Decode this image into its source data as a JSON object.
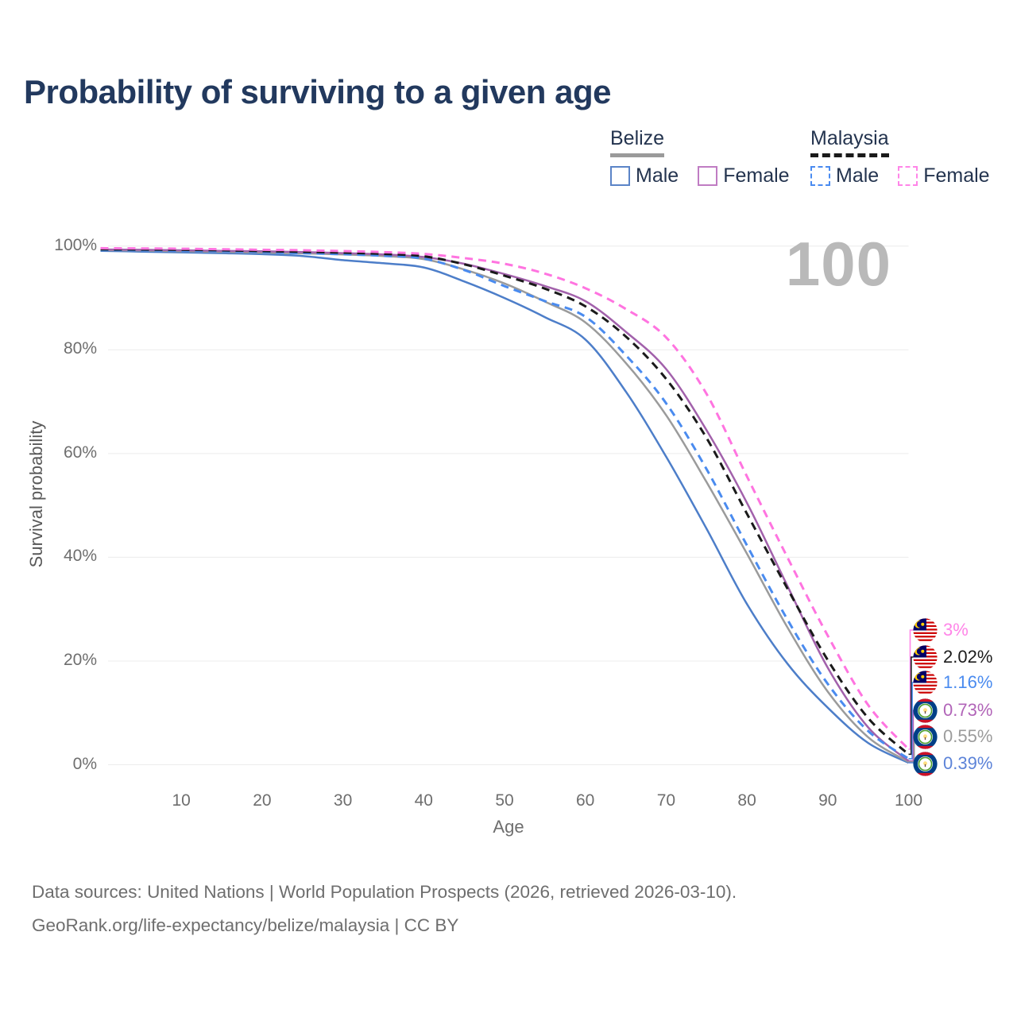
{
  "title": "Probability of surviving to a given age",
  "watermark_age": "100",
  "legend": {
    "groups": [
      {
        "label": "Belize",
        "line_style": "solid",
        "line_color": "#9a9a9a",
        "items": [
          {
            "label": "Male",
            "color": "#5b84c7",
            "dashed": false
          },
          {
            "label": "Female",
            "color": "#c07cc3",
            "dashed": false
          }
        ]
      },
      {
        "label": "Malaysia",
        "line_style": "dashed",
        "line_color": "#1a1a1a",
        "items": [
          {
            "label": "Male",
            "color": "#4a8bf0",
            "dashed": true
          },
          {
            "label": "Female",
            "color": "#ff85e8",
            "dashed": true
          }
        ]
      }
    ]
  },
  "axes": {
    "y_label": "Survival probability",
    "x_label": "Age",
    "y_ticks": [
      {
        "label": "100%",
        "value": 100
      },
      {
        "label": "80%",
        "value": 80
      },
      {
        "label": "60%",
        "value": 60
      },
      {
        "label": "40%",
        "value": 40
      },
      {
        "label": "20%",
        "value": 20
      },
      {
        "label": "0%",
        "value": 0
      }
    ],
    "x_ticks": [
      {
        "label": "10",
        "value": 10
      },
      {
        "label": "20",
        "value": 20
      },
      {
        "label": "30",
        "value": 30
      },
      {
        "label": "40",
        "value": 40
      },
      {
        "label": "50",
        "value": 50
      },
      {
        "label": "60",
        "value": 60
      },
      {
        "label": "70",
        "value": 70
      },
      {
        "label": "80",
        "value": 80
      },
      {
        "label": "90",
        "value": 90
      },
      {
        "label": "100",
        "value": 100
      }
    ],
    "x_range": [
      0,
      100
    ],
    "y_range": [
      0,
      100
    ],
    "grid": "horizontal"
  },
  "chart_data": {
    "type": "line",
    "x_ages": [
      0,
      5,
      10,
      15,
      20,
      25,
      30,
      35,
      40,
      45,
      50,
      55,
      60,
      65,
      70,
      75,
      80,
      85,
      90,
      95,
      100
    ],
    "series": [
      {
        "name": "Malaysia Female",
        "country": "Malaysia",
        "sex": "Female",
        "color": "#ff74e0",
        "dashed": true,
        "flag": "malaysia",
        "end_label": "3%",
        "end_value": 3.0,
        "label_color": "#ff85e8",
        "values": [
          99.6,
          99.55,
          99.5,
          99.4,
          99.3,
          99.2,
          99.05,
          98.85,
          98.5,
          97.7,
          96.6,
          94.7,
          91.9,
          87.9,
          82.4,
          71.5,
          55.6,
          40.0,
          24.9,
          11.5,
          3.0
        ]
      },
      {
        "name": "Malaysia",
        "country": "Malaysia",
        "sex": "All",
        "color": "#1a1a1a",
        "dashed": true,
        "flag": "malaysia",
        "end_label": "2.02%",
        "end_value": 2.02,
        "label_color": "#1c1c1c",
        "values": [
          99.4,
          99.35,
          99.3,
          99.2,
          99.05,
          98.9,
          98.75,
          98.5,
          98.05,
          96.5,
          94.3,
          91.8,
          88.4,
          82.6,
          74.4,
          63.0,
          48.4,
          34.0,
          20.2,
          9.0,
          2.02
        ]
      },
      {
        "name": "Malaysia Male",
        "country": "Malaysia",
        "sex": "Male",
        "color": "#4a8bef",
        "dashed": true,
        "flag": "malaysia",
        "end_label": "1.16%",
        "end_value": 1.16,
        "label_color": "#4a8bef",
        "values": [
          99.3,
          99.2,
          99.1,
          99.0,
          98.85,
          98.65,
          98.45,
          98.15,
          97.6,
          95.4,
          92.3,
          89.4,
          86.4,
          79.0,
          69.7,
          57.0,
          42.3,
          28.0,
          15.6,
          6.5,
          1.16
        ]
      },
      {
        "name": "Belize Female",
        "country": "Belize",
        "sex": "Female",
        "color": "#a261ab",
        "dashed": false,
        "flag": "belize",
        "end_label": "0.73%",
        "end_value": 0.73,
        "label_color": "#b164b8",
        "values": [
          99.35,
          99.3,
          99.2,
          99.1,
          99.0,
          98.85,
          98.65,
          98.4,
          97.9,
          96.6,
          94.6,
          92.3,
          89.4,
          83.5,
          76.3,
          64.5,
          50.5,
          34.5,
          18.7,
          7.2,
          0.73
        ]
      },
      {
        "name": "Belize",
        "country": "Belize",
        "sex": "All",
        "color": "#9b9b9b",
        "dashed": false,
        "flag": "belize",
        "end_label": "0.55%",
        "end_value": 0.55,
        "label_color": "#9b9b9b",
        "values": [
          99.25,
          99.15,
          99.0,
          98.9,
          98.75,
          98.6,
          98.4,
          98.1,
          97.5,
          95.5,
          92.8,
          89.3,
          85.3,
          77.5,
          67.4,
          54.5,
          40.7,
          26.5,
          14.1,
          5.3,
          0.55
        ]
      },
      {
        "name": "Belize Male",
        "country": "Belize",
        "sex": "Male",
        "color": "#4d7ec9",
        "dashed": false,
        "flag": "belize",
        "end_label": "0.39%",
        "end_value": 0.39,
        "label_color": "#5c83d8",
        "values": [
          99.1,
          98.95,
          98.8,
          98.65,
          98.45,
          98.1,
          97.3,
          96.7,
          95.9,
          93.2,
          90.0,
          86.3,
          82.0,
          72.0,
          59.4,
          45.5,
          31.0,
          19.5,
          11.0,
          4.2,
          0.39
        ]
      }
    ]
  },
  "footer": {
    "line1": "Data sources: United Nations | World Population Prospects (2026, retrieved 2026-03-10).",
    "line2": "GeoRank.org/life-expectancy/belize/malaysia | CC BY"
  }
}
